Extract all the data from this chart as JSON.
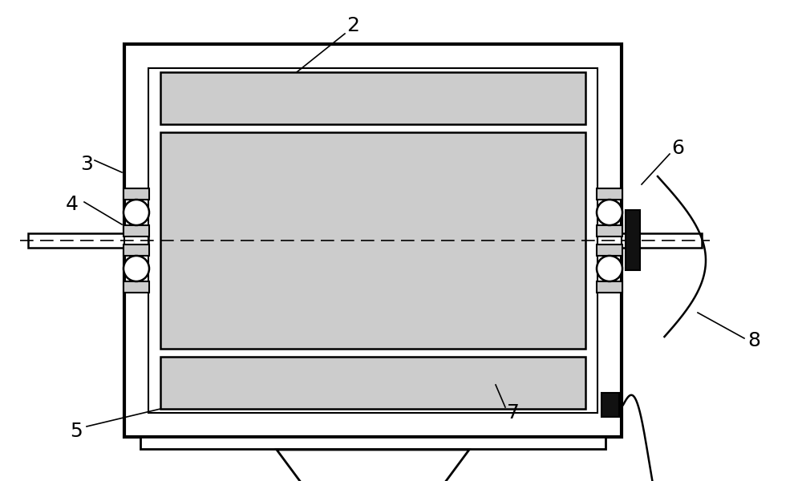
{
  "bg_color": "#ffffff",
  "lc": "#000000",
  "gray": "#cccccc",
  "dark": "#111111",
  "lw_main": 2.0,
  "lw_thin": 1.5
}
